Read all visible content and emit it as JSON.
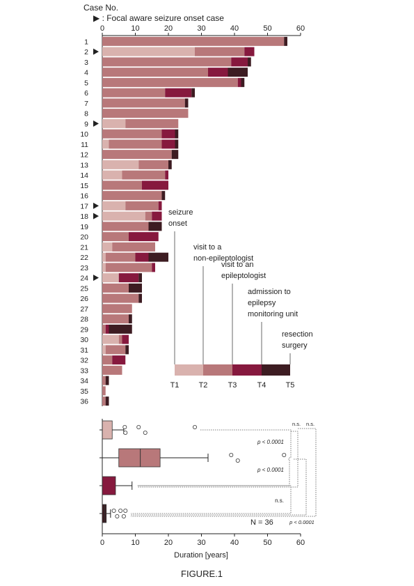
{
  "figure": {
    "case_header": "Case No.",
    "focal_note": "▶ : Focal aware seizure onset case",
    "caption": "FIGURE.1",
    "xlabel": "Duration [years]",
    "n_label": "N = 36"
  },
  "colors": {
    "T1": "#d9b2ae",
    "T2": "#b8787a",
    "T3": "#86193e",
    "T4": "#3d1c22"
  },
  "legend": {
    "labels": [
      [
        "seizure",
        "onset"
      ],
      [
        "visit to a",
        "non-epileptologist"
      ],
      [
        "visit to an",
        "epileptologist"
      ],
      [
        "admission to",
        "epilepsy",
        "monitoring unit"
      ],
      [
        "resection",
        "surgery"
      ]
    ],
    "time_points": [
      "T1",
      "T2",
      "T3",
      "T4",
      "T5"
    ]
  },
  "chart_data": [
    {
      "type": "bar",
      "subtype": "stacked-horizontal",
      "xlim": [
        0,
        60
      ],
      "x_ticks": [
        0,
        10,
        20,
        30,
        40,
        50,
        60
      ],
      "ylabel": "Case No.",
      "segment_names": [
        "T1",
        "T2",
        "T3",
        "T4"
      ],
      "cases": [
        {
          "id": "1",
          "focal": false,
          "seg": [
            0,
            55,
            0,
            1
          ]
        },
        {
          "id": "2",
          "focal": true,
          "seg": [
            28,
            15,
            3,
            0
          ]
        },
        {
          "id": "3",
          "focal": false,
          "seg": [
            0,
            39,
            5,
            1
          ]
        },
        {
          "id": "4",
          "focal": false,
          "seg": [
            0,
            32,
            6,
            6
          ]
        },
        {
          "id": "5",
          "focal": false,
          "seg": [
            0,
            41,
            1,
            1
          ]
        },
        {
          "id": "6",
          "focal": false,
          "seg": [
            0,
            19,
            8,
            1
          ]
        },
        {
          "id": "7",
          "focal": false,
          "seg": [
            0,
            25,
            0,
            1
          ]
        },
        {
          "id": "8",
          "focal": false,
          "seg": [
            0,
            26,
            0,
            0
          ]
        },
        {
          "id": "9",
          "focal": true,
          "seg": [
            7,
            16,
            0,
            0
          ]
        },
        {
          "id": "10",
          "focal": false,
          "seg": [
            0,
            18,
            4,
            1
          ]
        },
        {
          "id": "11",
          "focal": false,
          "seg": [
            2,
            16,
            4,
            1
          ]
        },
        {
          "id": "12",
          "focal": false,
          "seg": [
            0,
            21,
            0,
            2
          ]
        },
        {
          "id": "13",
          "focal": false,
          "seg": [
            11,
            9,
            0,
            1
          ]
        },
        {
          "id": "14",
          "focal": false,
          "seg": [
            6,
            13,
            1,
            0
          ]
        },
        {
          "id": "15",
          "focal": false,
          "seg": [
            0,
            12,
            8,
            0
          ]
        },
        {
          "id": "16",
          "focal": false,
          "seg": [
            0,
            18,
            0,
            1
          ]
        },
        {
          "id": "17",
          "focal": true,
          "seg": [
            7,
            10,
            1,
            0
          ]
        },
        {
          "id": "18",
          "focal": true,
          "seg": [
            13,
            2,
            3,
            0
          ]
        },
        {
          "id": "19",
          "focal": false,
          "seg": [
            0,
            14,
            0,
            4
          ]
        },
        {
          "id": "20",
          "focal": false,
          "seg": [
            0,
            8,
            9,
            0
          ]
        },
        {
          "id": "21",
          "focal": false,
          "seg": [
            3,
            13,
            0,
            0
          ]
        },
        {
          "id": "22",
          "focal": false,
          "seg": [
            1,
            9,
            4,
            6
          ]
        },
        {
          "id": "23",
          "focal": false,
          "seg": [
            1,
            14,
            1,
            0
          ]
        },
        {
          "id": "24",
          "focal": true,
          "seg": [
            5,
            0,
            6,
            1
          ]
        },
        {
          "id": "25",
          "focal": false,
          "seg": [
            0,
            8,
            0,
            4
          ]
        },
        {
          "id": "26",
          "focal": false,
          "seg": [
            0,
            11,
            0,
            1
          ]
        },
        {
          "id": "27",
          "focal": false,
          "seg": [
            0,
            9,
            0,
            0
          ]
        },
        {
          "id": "28",
          "focal": false,
          "seg": [
            0,
            8,
            0,
            1
          ]
        },
        {
          "id": "29",
          "focal": false,
          "seg": [
            0,
            1,
            1,
            7
          ]
        },
        {
          "id": "30",
          "focal": false,
          "seg": [
            5,
            1,
            2,
            0
          ]
        },
        {
          "id": "31",
          "focal": false,
          "seg": [
            1,
            6,
            0,
            1
          ]
        },
        {
          "id": "32",
          "focal": false,
          "seg": [
            0,
            3,
            4,
            0
          ]
        },
        {
          "id": "33",
          "focal": false,
          "seg": [
            0,
            6,
            0,
            0
          ]
        },
        {
          "id": "34",
          "focal": false,
          "seg": [
            0,
            1,
            0,
            1
          ]
        },
        {
          "id": "35",
          "focal": false,
          "seg": [
            0,
            1,
            0,
            0
          ]
        },
        {
          "id": "36",
          "focal": false,
          "seg": [
            0,
            1,
            0,
            1
          ]
        }
      ]
    },
    {
      "type": "boxplot",
      "xlim": [
        0,
        60
      ],
      "x_ticks": [
        0,
        10,
        20,
        30,
        40,
        50,
        60
      ],
      "xlabel": "Duration [years]",
      "boxes": [
        {
          "color": "T1",
          "q1": 0,
          "median": 0,
          "q3": 3,
          "wlo": 0,
          "whi": 6.5,
          "outliers": [
            6.8,
            7,
            11,
            13,
            28
          ]
        },
        {
          "color": "T2",
          "q1": 5,
          "median": 11.5,
          "q3": 17.5,
          "wlo": 0,
          "whi": 32,
          "outliers": [
            39,
            41,
            55
          ]
        },
        {
          "color": "T3",
          "q1": 0,
          "median": 0,
          "q3": 4,
          "wlo": 0,
          "whi": 9,
          "outliers": []
        },
        {
          "color": "T4",
          "q1": 0,
          "median": 0.7,
          "q3": 1.2,
          "wlo": 0,
          "whi": 2.5,
          "outliers": [
            3.5,
            4.5,
            5.5,
            6.5,
            7
          ]
        }
      ],
      "comparisons": [
        {
          "pair": [
            1,
            2
          ],
          "label": "p < 0.0001"
        },
        {
          "pair": [
            2,
            3
          ],
          "label": "p < 0.0001"
        },
        {
          "pair": [
            3,
            4
          ],
          "label": "n.s."
        },
        {
          "pair": [
            1,
            3
          ],
          "label": "n.s."
        },
        {
          "pair": [
            2,
            4
          ],
          "label": "p < 0.0001"
        },
        {
          "pair": [
            1,
            4
          ],
          "label": "n.s."
        }
      ]
    }
  ]
}
